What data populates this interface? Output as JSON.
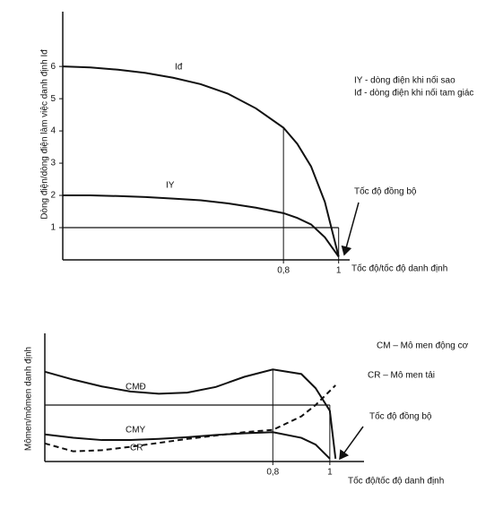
{
  "chart_data": [
    {
      "type": "line",
      "y_label": "Dòng điện/dòng điện làm việc danh định Iđ",
      "x_label": "Tốc độ/tốc độ danh định",
      "legend_texts": [
        "IY - dòng điện khi nối sao",
        "Iđ - dòng điện khi nối tam giác"
      ],
      "annotation": "Tốc độ đồng bộ",
      "x": [
        0,
        0.1,
        0.2,
        0.3,
        0.4,
        0.5,
        0.6,
        0.7,
        0.8,
        0.85,
        0.9,
        0.95,
        1.0
      ],
      "series": [
        {
          "name": "Iđ",
          "color": "#111111",
          "values": [
            6,
            5.97,
            5.9,
            5.8,
            5.65,
            5.45,
            5.15,
            4.7,
            4.1,
            3.6,
            2.9,
            1.8,
            0.1
          ]
        },
        {
          "name": "IY",
          "color": "#111111",
          "values": [
            2,
            2,
            1.98,
            1.95,
            1.9,
            1.85,
            1.75,
            1.62,
            1.45,
            1.3,
            1.1,
            0.7,
            0.1
          ]
        }
      ],
      "hline": 1,
      "xlim": [
        0,
        1.04
      ],
      "ylim": [
        0,
        7.7
      ],
      "xticks": [
        {
          "value": 0.8,
          "label": "0,8"
        },
        1
      ],
      "yticks": [
        1,
        2,
        3,
        4,
        5,
        6
      ]
    },
    {
      "type": "line",
      "y_label": "Mômen/mômen danh định",
      "x_label": "Tốc độ/tốc độ danh định",
      "legend_texts": [
        "CM – Mô men động cơ",
        "CR – Mô men tải"
      ],
      "annotation": "Tốc độ đồng bộ",
      "x": [
        0,
        0.1,
        0.2,
        0.3,
        0.4,
        0.5,
        0.6,
        0.7,
        0.8,
        0.9,
        0.95,
        1.0,
        1.02
      ],
      "series": [
        {
          "name": "CMĐ",
          "color": "#111111",
          "values": [
            1.59,
            1.45,
            1.33,
            1.24,
            1.2,
            1.22,
            1.32,
            1.5,
            1.63,
            1.55,
            1.3,
            0.9,
            0.05
          ]
        },
        {
          "name": "CMY",
          "color": "#111111",
          "values": [
            0.48,
            0.42,
            0.38,
            0.38,
            0.4,
            0.43,
            0.47,
            0.5,
            0.52,
            0.42,
            0.3,
            0.05,
            null
          ]
        },
        {
          "name": "CR",
          "color": "#111111",
          "dashed": true,
          "values": [
            0.32,
            0.18,
            0.2,
            0.26,
            0.33,
            0.4,
            0.46,
            0.52,
            0.56,
            0.8,
            1.0,
            1.25,
            1.35
          ]
        }
      ],
      "hline": 1,
      "xlim": [
        0,
        1.12
      ],
      "ylim": [
        0,
        2.27
      ],
      "xticks": [
        {
          "value": 0.8,
          "label": "0,8"
        },
        1
      ]
    }
  ]
}
